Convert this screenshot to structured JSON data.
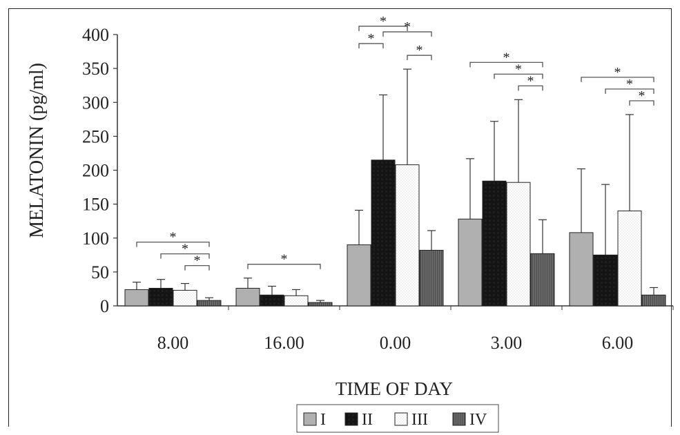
{
  "chart_data": {
    "type": "bar",
    "xlabel": "TIME OF DAY",
    "ylabel": "MELATONIN (pg/ml)",
    "ylim": [
      0,
      400
    ],
    "yticks": [
      0,
      50,
      100,
      150,
      200,
      250,
      300,
      350,
      400
    ],
    "categories": [
      "8.00",
      "16.00",
      "0.00",
      "3.00",
      "6.00"
    ],
    "series": [
      {
        "name": "I",
        "values": [
          24,
          26,
          90,
          128,
          108
        ],
        "errors": [
          11,
          15,
          51,
          89,
          94
        ],
        "color": "#b0b0b0",
        "pattern": "light-gray"
      },
      {
        "name": "II",
        "values": [
          26,
          16,
          215,
          184,
          75
        ],
        "errors": [
          13,
          13,
          96,
          88,
          104
        ],
        "color": "#111111",
        "pattern": "black"
      },
      {
        "name": "III",
        "values": [
          23,
          15,
          208,
          182,
          140
        ],
        "errors": [
          10,
          9,
          141,
          122,
          142
        ],
        "color": "#ffffff",
        "pattern": "white-dotted"
      },
      {
        "name": "IV",
        "values": [
          8,
          5,
          82,
          77,
          16
        ],
        "errors": [
          4,
          3,
          29,
          50,
          11
        ],
        "color": "#666666",
        "pattern": "dark-gray-striped"
      }
    ],
    "significance": [
      {
        "category": "8.00",
        "from": "II",
        "to": "IV",
        "label": "*"
      },
      {
        "category": "8.00",
        "from": "I",
        "to": "IV",
        "label": "*"
      },
      {
        "category": "8.00",
        "from": "III",
        "to": "IV",
        "label": "*"
      },
      {
        "category": "16.00",
        "from": "I",
        "to": "IV",
        "label": "*"
      },
      {
        "category": "0.00",
        "from": "II",
        "to": "IV",
        "label": "*"
      },
      {
        "category": "0.00",
        "from": "III",
        "to": "IV",
        "label": "*"
      },
      {
        "category": "0.00",
        "from": "I",
        "to": "III",
        "label": "*"
      },
      {
        "category": "0.00",
        "from": "I",
        "to": "II",
        "label": "*"
      },
      {
        "category": "3.00",
        "from": "I",
        "to": "IV",
        "label": "*"
      },
      {
        "category": "3.00",
        "from": "II",
        "to": "IV",
        "label": "*"
      },
      {
        "category": "3.00",
        "from": "III",
        "to": "IV",
        "label": "*"
      },
      {
        "category": "6.00",
        "from": "I",
        "to": "IV",
        "label": "*"
      },
      {
        "category": "6.00",
        "from": "II",
        "to": "IV",
        "label": "*"
      },
      {
        "category": "6.00",
        "from": "III",
        "to": "IV",
        "label": "*"
      }
    ],
    "legend": {
      "placement": "bottom-center",
      "entries": [
        "I",
        "II",
        "III",
        "IV"
      ]
    }
  }
}
